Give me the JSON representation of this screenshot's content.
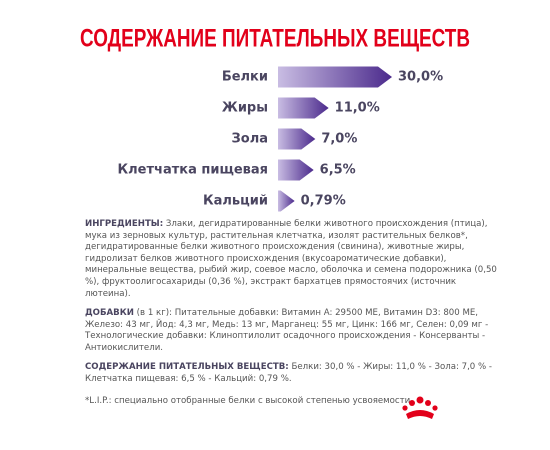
{
  "chart_data": {
    "type": "bar",
    "title": "СОДЕРЖАНИЕ ПИТАТЕЛЬНЫХ ВЕЩЕСТВ",
    "categories": [
      "Белки",
      "Жиры",
      "Зола",
      "Клетчатка пищевая",
      "Кальций"
    ],
    "values": [
      30.0,
      11.0,
      7.0,
      6.5,
      0.79
    ],
    "value_labels": [
      "30,0%",
      "11,0%",
      "7,0%",
      "6,5%",
      "0,79%"
    ],
    "color": "#4b2a8c"
  },
  "ingredients": {
    "label": "ИНГРЕДИЕНТЫ:",
    "text": "Злаки, дегидратированные белки животного происхождения (птица), мука из зерновых культур, растительная клетчатка, изолят растительных белков*, дегидратированные белки животного происхождения (свинина), животные жиры, гидролизат белков животного происхождения (вкусоароматические добавки), минеральные вещества, рыбий жир, соевое масло, оболочка и семена подорожника (0,50 %), фруктоолигосахариды (0,36 %), экстракт бархатцев прямостоячих (источник лютеина)."
  },
  "additives": {
    "label": "ДОБАВКИ",
    "unit": "(в 1 кг):",
    "text": "Питательные добавки: Витамин A: 29500 МЕ, Витамин D3: 800 МЕ, Железо: 43 мг, Йод: 4,3 мг, Медь: 13 мг, Марганец: 55 мг, Цинк: 166 мг, Селен: 0,09 мг - Технологические добавки: Клиноптилолит осадочного происхождения - Консерванты - Антиокислители."
  },
  "nutrients": {
    "label": "СОДЕРЖАНИЕ ПИТАТЕЛЬНЫХ ВЕЩЕСТВ:",
    "text": "Белки: 30,0 % - Жиры: 11,0 % - Зола: 7,0 % - Клетчатка пищевая: 6,5 % - Кальций: 0,79 %."
  },
  "footnote": "*L.I.P.: специально отобранные белки с высокой степенью усвояемости."
}
